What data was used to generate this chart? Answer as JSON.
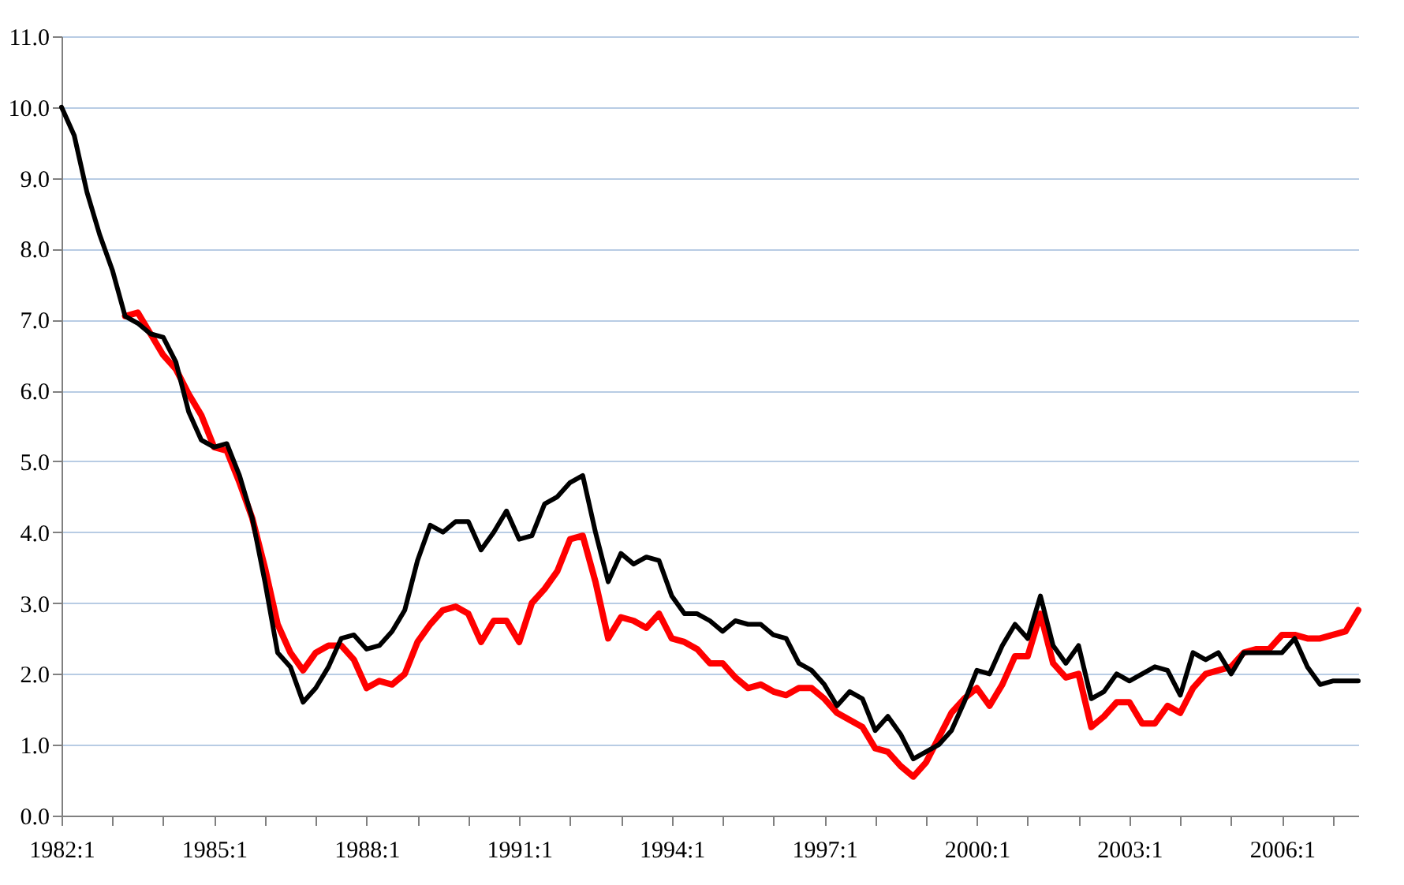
{
  "chart_data": {
    "type": "line",
    "categories": [
      "1982:1",
      null,
      null,
      null,
      null,
      null,
      null,
      null,
      null,
      null,
      null,
      null,
      "1985:1",
      null,
      null,
      null,
      null,
      null,
      null,
      null,
      null,
      null,
      null,
      null,
      "1988:1",
      null,
      null,
      null,
      null,
      null,
      null,
      null,
      null,
      null,
      null,
      null,
      "1991:1",
      null,
      null,
      null,
      null,
      null,
      null,
      null,
      null,
      null,
      null,
      null,
      "1994:1",
      null,
      null,
      null,
      null,
      null,
      null,
      null,
      null,
      null,
      null,
      null,
      "1997:1",
      null,
      null,
      null,
      null,
      null,
      null,
      null,
      null,
      null,
      null,
      null,
      "2000:1",
      null,
      null,
      null,
      null,
      null,
      null,
      null,
      null,
      null,
      null,
      null,
      "2003:1",
      null,
      null,
      null,
      null,
      null,
      null,
      null,
      null,
      null,
      null,
      null,
      "2006:1",
      null,
      null,
      null,
      null,
      null,
      null
    ],
    "series": [
      {
        "color": "#ff0000",
        "values": [
          null,
          null,
          null,
          null,
          null,
          7.05,
          7.1,
          6.8,
          6.5,
          6.3,
          5.95,
          5.65,
          5.2,
          5.15,
          4.7,
          4.2,
          3.5,
          2.7,
          2.3,
          2.05,
          2.3,
          2.4,
          2.4,
          2.2,
          1.8,
          1.9,
          1.85,
          2.0,
          2.45,
          2.7,
          2.9,
          2.95,
          2.85,
          2.45,
          2.75,
          2.75,
          2.45,
          3.0,
          3.2,
          3.45,
          3.9,
          3.95,
          3.3,
          2.5,
          2.8,
          2.75,
          2.65,
          2.85,
          2.5,
          2.45,
          2.35,
          2.15,
          2.15,
          1.95,
          1.8,
          1.85,
          1.75,
          1.7,
          1.8,
          1.8,
          1.65,
          1.45,
          1.35,
          1.25,
          0.95,
          0.9,
          0.7,
          0.55,
          0.75,
          1.1,
          1.45,
          1.65,
          1.8,
          1.55,
          1.85,
          2.25,
          2.25,
          2.85,
          2.15,
          1.95,
          2.0,
          1.25,
          1.4,
          1.6,
          1.6,
          1.3,
          1.3,
          1.55,
          1.45,
          1.8,
          2.0,
          2.05,
          2.1,
          2.3,
          2.35,
          2.35,
          2.55,
          2.55,
          2.5,
          2.5,
          2.55,
          2.6,
          2.9
        ]
      },
      {
        "color": "#000000",
        "values": [
          10.0,
          9.6,
          8.8,
          8.2,
          7.7,
          7.05,
          6.95,
          6.8,
          6.75,
          6.4,
          5.7,
          5.3,
          5.2,
          5.25,
          4.8,
          4.2,
          3.3,
          2.3,
          2.1,
          1.6,
          1.8,
          2.1,
          2.5,
          2.55,
          2.35,
          2.4,
          2.6,
          2.9,
          3.6,
          4.1,
          4.0,
          4.15,
          4.15,
          3.75,
          4.0,
          4.3,
          3.9,
          3.95,
          4.4,
          4.5,
          4.7,
          4.8,
          4.0,
          3.3,
          3.7,
          3.55,
          3.65,
          3.6,
          3.1,
          2.85,
          2.85,
          2.75,
          2.6,
          2.75,
          2.7,
          2.7,
          2.55,
          2.5,
          2.15,
          2.05,
          1.85,
          1.55,
          1.75,
          1.65,
          1.2,
          1.4,
          1.15,
          0.8,
          0.9,
          1.0,
          1.2,
          1.6,
          2.05,
          2.0,
          2.4,
          2.7,
          2.5,
          3.1,
          2.4,
          2.15,
          2.4,
          1.65,
          1.75,
          2.0,
          1.9,
          2.0,
          2.1,
          2.05,
          1.7,
          2.3,
          2.2,
          2.3,
          2.0,
          2.3,
          2.3,
          2.3,
          2.3,
          2.5,
          2.1,
          1.85,
          1.9,
          1.9,
          1.9
        ]
      }
    ],
    "ylim": [
      0,
      11
    ],
    "yticks": [
      {
        "value": 0,
        "label": "0.0"
      },
      {
        "value": 1,
        "label": "1.0"
      },
      {
        "value": 2,
        "label": "2.0"
      },
      {
        "value": 3,
        "label": "3.0"
      },
      {
        "value": 4,
        "label": "4.0"
      },
      {
        "value": 5,
        "label": "5.0"
      },
      {
        "value": 6,
        "label": "6.0"
      },
      {
        "value": 7,
        "label": "7.0"
      },
      {
        "value": 8,
        "label": "8.0"
      },
      {
        "value": 9,
        "label": "9.0"
      },
      {
        "value": 10,
        "label": "10.0"
      },
      {
        "value": 11,
        "label": "11.0"
      }
    ],
    "grid": "y",
    "marker": "none",
    "line_style": "solid"
  }
}
